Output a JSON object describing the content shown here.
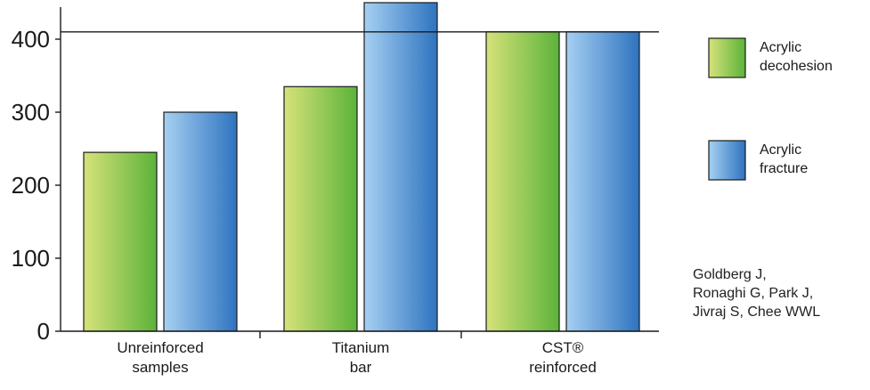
{
  "chart_data": {
    "type": "bar",
    "categories": [
      [
        "Unreinforced",
        "samples"
      ],
      [
        "Titanium",
        "bar"
      ],
      [
        "CST®",
        "reinforced"
      ]
    ],
    "series": [
      {
        "name": "Acrylic decohesion",
        "legend_lines": [
          "Acrylic",
          "decohesion"
        ],
        "values": [
          245,
          335,
          410
        ],
        "colors": [
          "#d6e27a",
          "#5cb33a"
        ]
      },
      {
        "name": "Acrylic fracture",
        "legend_lines": [
          "Acrylic",
          "fracture"
        ],
        "values": [
          300,
          450,
          410
        ],
        "colors": [
          "#a6d0f2",
          "#2e73bf"
        ]
      }
    ],
    "yticks": [
      0,
      100,
      200,
      300,
      400
    ],
    "ylim": [
      0,
      460
    ],
    "reference_line": 410,
    "title": "",
    "xlabel": "",
    "ylabel": "",
    "legend_position": "right",
    "grid": false
  },
  "citation": [
    "Goldberg J,",
    "Ronaghi G, Park J,",
    "Jivraj S, Chee WWL"
  ]
}
